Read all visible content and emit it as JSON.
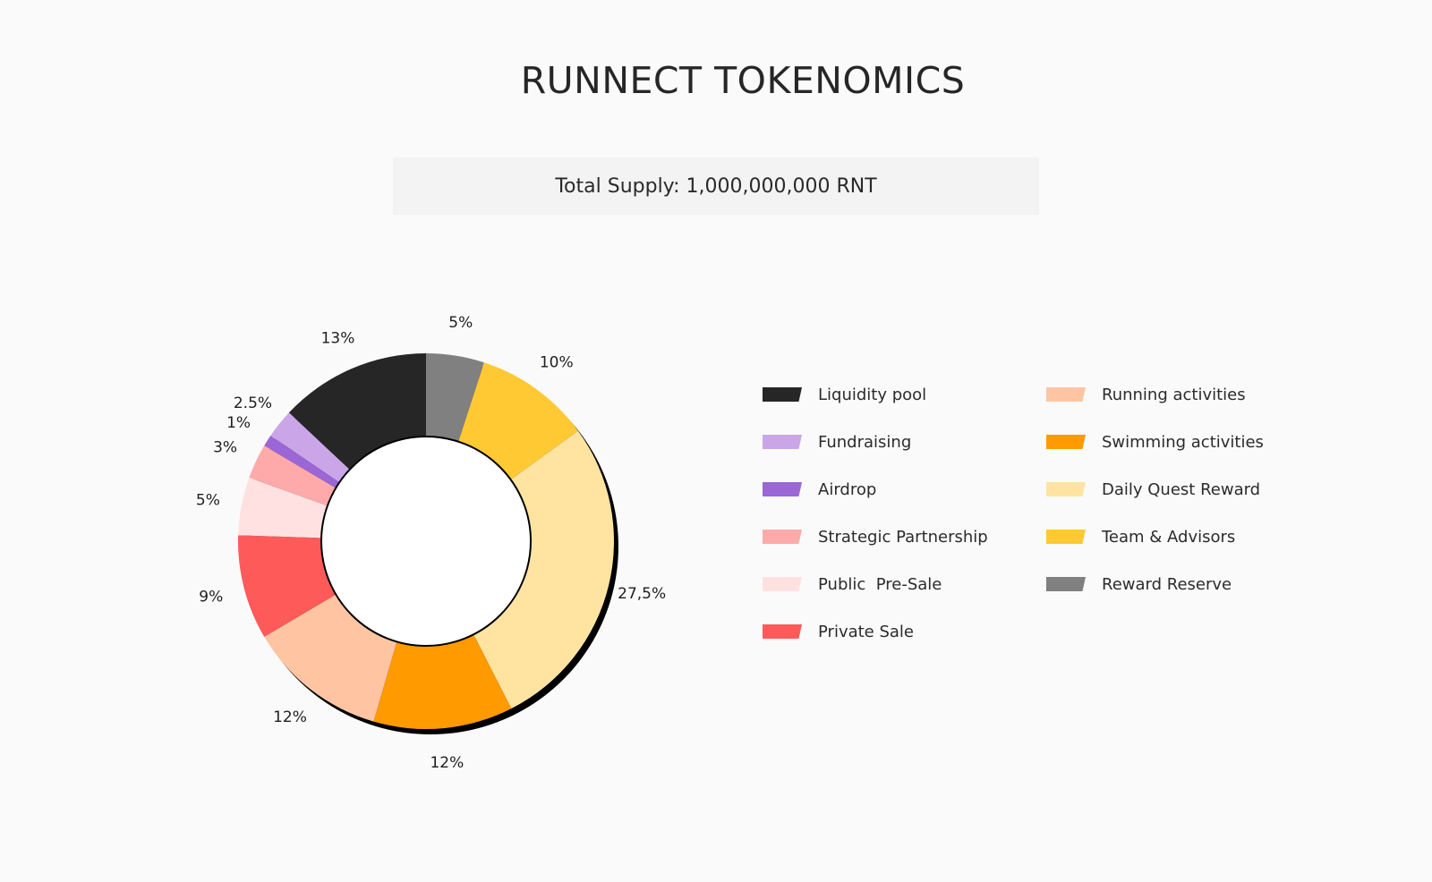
{
  "header": {
    "title": "RUNNECT TOKENOMICS",
    "total_supply": "Total Supply: 1,000,000,000 RNT"
  },
  "chart_data": {
    "type": "pie",
    "donut": true,
    "legend_position": "right",
    "slices": [
      {
        "name": "Reward Reserve",
        "value": 5,
        "label": "5%",
        "color": "#808080"
      },
      {
        "name": "Team & Advisors",
        "value": 10,
        "label": "10%",
        "color": "#ffc933"
      },
      {
        "name": "Daily Quest Reward",
        "value": 27.5,
        "label": "27,5%",
        "color": "#ffe4a1"
      },
      {
        "name": "Swimming activities",
        "value": 12,
        "label": "12%",
        "color": "#ff9a00"
      },
      {
        "name": "Running activities",
        "value": 12,
        "label": "12%",
        "color": "#ffc5a3"
      },
      {
        "name": "Private Sale",
        "value": 9,
        "label": "9%",
        "color": "#ff5a5a"
      },
      {
        "name": "Public  Pre-Sale",
        "value": 5,
        "label": "5%",
        "color": "#ffe1e1"
      },
      {
        "name": "Strategic Partnership",
        "value": 3,
        "label": "3%",
        "color": "#ffaaaa"
      },
      {
        "name": "Airdrop",
        "value": 1,
        "label": "1%",
        "color": "#9b66d6"
      },
      {
        "name": "Fundraising",
        "value": 2.5,
        "label": "2.5%",
        "color": "#caa6e8"
      },
      {
        "name": "Liquidity pool",
        "value": 13,
        "label": "13%",
        "color": "#262626"
      }
    ],
    "legend": {
      "left_column": [
        "Liquidity pool",
        "Fundraising",
        "Airdrop",
        "Strategic Partnership",
        "Public  Pre-Sale",
        "Private Sale"
      ],
      "right_column": [
        "Running activities",
        "Swimming activities",
        "Daily Quest Reward",
        "Team & Advisors",
        "Reward Reserve"
      ]
    }
  }
}
